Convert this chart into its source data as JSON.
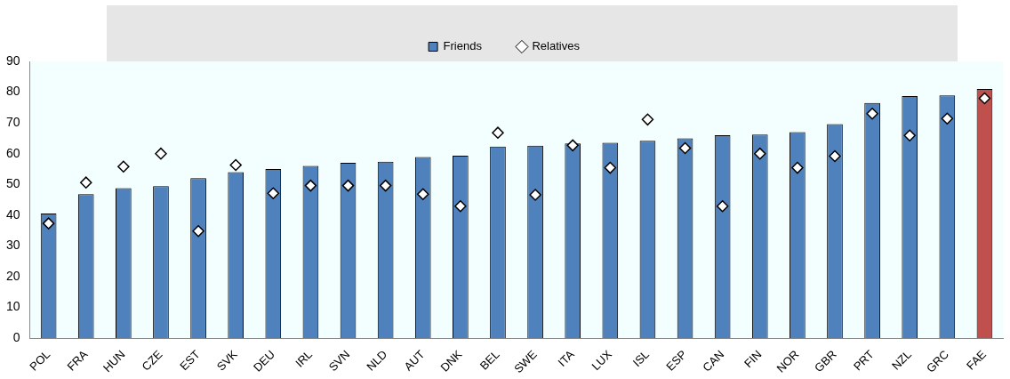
{
  "chart_data": {
    "type": "bar",
    "categories": [
      "POL",
      "FRA",
      "HUN",
      "CZE",
      "EST",
      "SVK",
      "DEU",
      "IRL",
      "SVN",
      "NLD",
      "AUT",
      "DNK",
      "BEL",
      "SWE",
      "ITA",
      "LUX",
      "ISL",
      "ESP",
      "CAN",
      "FIN",
      "NOR",
      "GBR",
      "PRT",
      "NZL",
      "GRC",
      "FAE"
    ],
    "series": [
      {
        "name": "Friends",
        "color": "#4f81bd",
        "colors": [
          "#4f81bd",
          "#4f81bd",
          "#4f81bd",
          "#4f81bd",
          "#4f81bd",
          "#4f81bd",
          "#4f81bd",
          "#4f81bd",
          "#4f81bd",
          "#4f81bd",
          "#4f81bd",
          "#4f81bd",
          "#4f81bd",
          "#4f81bd",
          "#4f81bd",
          "#4f81bd",
          "#4f81bd",
          "#4f81bd",
          "#4f81bd",
          "#4f81bd",
          "#4f81bd",
          "#4f81bd",
          "#4f81bd",
          "#4f81bd",
          "#4f81bd",
          "#c0504d"
        ],
        "values": [
          40.5,
          46.8,
          48.8,
          49.4,
          52,
          54,
          55,
          56,
          57,
          57.4,
          58.9,
          59.3,
          62.3,
          62.6,
          63.3,
          63.5,
          64.2,
          65,
          66,
          66.2,
          67,
          69.6,
          76.5,
          78.7,
          78.9,
          81
        ]
      },
      {
        "name": "Relatives",
        "type": "scatter",
        "color": "#ffffff",
        "marker": "diamond",
        "values": [
          37.3,
          50.6,
          55.8,
          60,
          34.8,
          56.3,
          47.1,
          49.6,
          49.6,
          49.6,
          46.8,
          42.9,
          66.8,
          46.6,
          62.7,
          55.4,
          71.1,
          61.8,
          42.9,
          60,
          55.4,
          59.2,
          73,
          65.9,
          71.4,
          78
        ]
      }
    ],
    "ylim": [
      0,
      90
    ],
    "yticks": [
      0,
      10,
      20,
      30,
      40,
      50,
      60,
      70,
      80,
      90
    ],
    "legend": "top"
  }
}
